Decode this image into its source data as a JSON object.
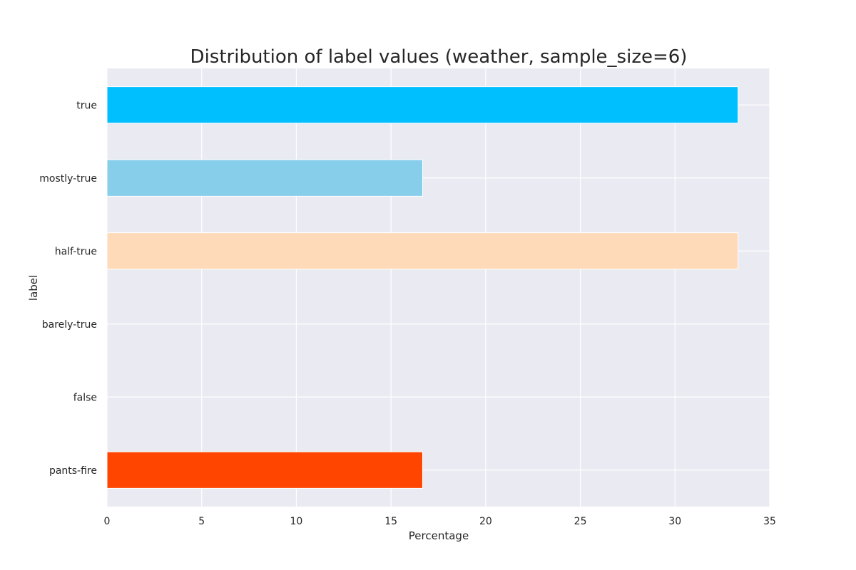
{
  "chart_data": {
    "type": "bar",
    "orientation": "horizontal",
    "title": "Distribution of label values (weather, sample_size=6)",
    "xlabel": "Percentage",
    "ylabel": "label",
    "xlim": [
      0,
      35
    ],
    "xticks": [
      0,
      5,
      10,
      15,
      20,
      25,
      30,
      35
    ],
    "grid": true,
    "background_color": "#eaeaf2",
    "categories": [
      "true",
      "mostly-true",
      "half-true",
      "barely-true",
      "false",
      "pants-fire"
    ],
    "values": [
      33.33,
      16.67,
      33.33,
      0,
      0,
      16.67
    ],
    "colors": [
      "#00bfff",
      "#87ceeb",
      "#ffdab9",
      "#ffc0cb",
      "#ff6347",
      "#ff4500"
    ]
  }
}
